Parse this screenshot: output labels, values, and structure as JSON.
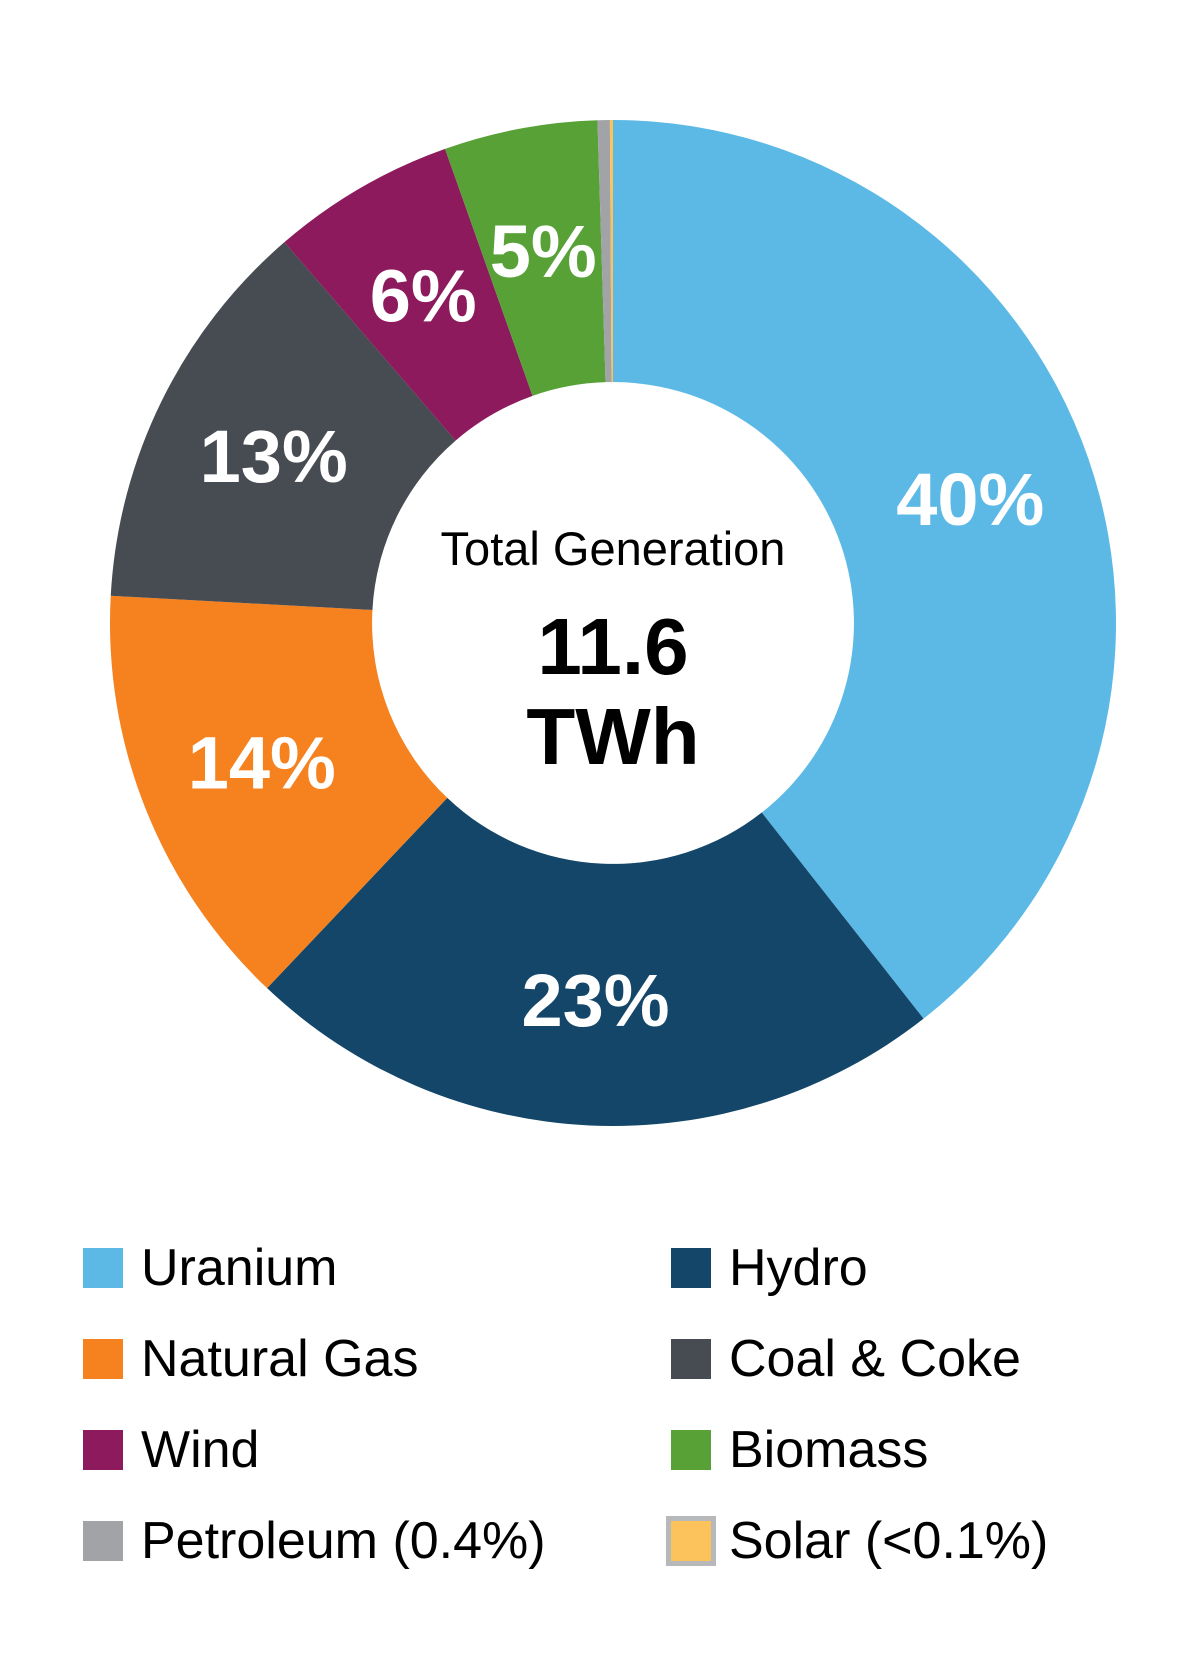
{
  "chart_data": {
    "type": "donut",
    "title": "",
    "center_label": {
      "title": "Total Generation",
      "value": "11.6",
      "unit": "TWh"
    },
    "start_angle_deg": 0,
    "direction": "clockwise",
    "donut_hole_ratio": 0.479,
    "legend_position": "bottom-two-columns",
    "slices": [
      {
        "label": "Uranium",
        "value": 40,
        "pct_label": "40%",
        "legend_label": "Uranium",
        "color": "#5CB9E6",
        "swatch_border": ""
      },
      {
        "label": "Hydro",
        "value": 23,
        "pct_label": "23%",
        "legend_label": "Hydro",
        "color": "#134668",
        "swatch_border": ""
      },
      {
        "label": "Natural Gas",
        "value": 14,
        "pct_label": "14%",
        "legend_label": "Natural Gas",
        "color": "#F5821F",
        "swatch_border": ""
      },
      {
        "label": "Coal & Coke",
        "value": 13,
        "pct_label": "13%",
        "legend_label": "Coal & Coke",
        "color": "#474B52",
        "swatch_border": ""
      },
      {
        "label": "Wind",
        "value": 6,
        "pct_label": "6%",
        "legend_label": "Wind",
        "color": "#8C1A5C",
        "swatch_border": ""
      },
      {
        "label": "Biomass",
        "value": 5,
        "pct_label": "5%",
        "legend_label": "Biomass",
        "color": "#57A137",
        "swatch_border": ""
      },
      {
        "label": "Petroleum",
        "value": 0.4,
        "pct_label": "",
        "legend_label": "Petroleum (0.4%)",
        "color": "#A1A3A7",
        "swatch_border": ""
      },
      {
        "label": "Solar",
        "value": 0.1,
        "pct_label": "",
        "legend_label": "Solar (<0.1%)",
        "color": "#FCC35D",
        "swatch_border": "#B6B8BA"
      }
    ]
  }
}
